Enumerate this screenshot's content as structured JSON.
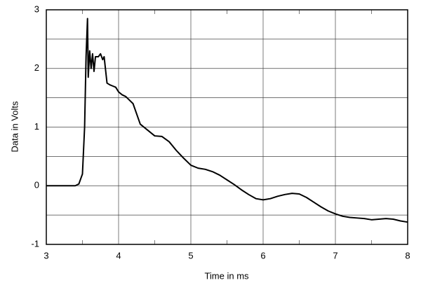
{
  "chart_data": {
    "type": "line",
    "x_label": "Time in ms",
    "y_label": "Data in Volts",
    "xlim": [
      3,
      8
    ],
    "ylim": [
      -1,
      3
    ],
    "xticks": [
      3,
      4,
      5,
      6,
      7,
      8
    ],
    "yticks": [
      -1,
      0,
      1,
      2,
      3
    ],
    "grid": true,
    "series": [
      {
        "color": "#000000",
        "x": [
          3.0,
          3.3,
          3.4,
          3.45,
          3.5,
          3.53,
          3.55,
          3.57,
          3.58,
          3.6,
          3.62,
          3.64,
          3.66,
          3.68,
          3.72,
          3.75,
          3.78,
          3.8,
          3.84,
          3.88,
          3.92,
          3.96,
          4.0,
          4.05,
          4.1,
          4.2,
          4.3,
          4.4,
          4.5,
          4.6,
          4.7,
          4.8,
          4.9,
          5.0,
          5.1,
          5.2,
          5.3,
          5.4,
          5.5,
          5.6,
          5.7,
          5.8,
          5.9,
          6.0,
          6.1,
          6.2,
          6.3,
          6.4,
          6.5,
          6.6,
          6.7,
          6.8,
          6.9,
          7.0,
          7.1,
          7.2,
          7.3,
          7.4,
          7.5,
          7.6,
          7.7,
          7.8,
          7.9,
          8.0
        ],
        "values": [
          0,
          0,
          0.0,
          0.03,
          0.2,
          1.0,
          2.2,
          2.85,
          1.85,
          2.3,
          2.0,
          2.25,
          1.95,
          2.2,
          2.2,
          2.25,
          2.15,
          2.2,
          1.75,
          1.72,
          1.7,
          1.68,
          1.6,
          1.55,
          1.52,
          1.4,
          1.05,
          0.95,
          0.85,
          0.84,
          0.75,
          0.6,
          0.47,
          0.35,
          0.3,
          0.28,
          0.24,
          0.18,
          0.1,
          0.02,
          -0.07,
          -0.15,
          -0.22,
          -0.24,
          -0.22,
          -0.18,
          -0.15,
          -0.13,
          -0.14,
          -0.2,
          -0.28,
          -0.36,
          -0.43,
          -0.48,
          -0.52,
          -0.54,
          -0.55,
          -0.56,
          -0.58,
          -0.57,
          -0.56,
          -0.57,
          -0.6,
          -0.62
        ]
      }
    ]
  }
}
